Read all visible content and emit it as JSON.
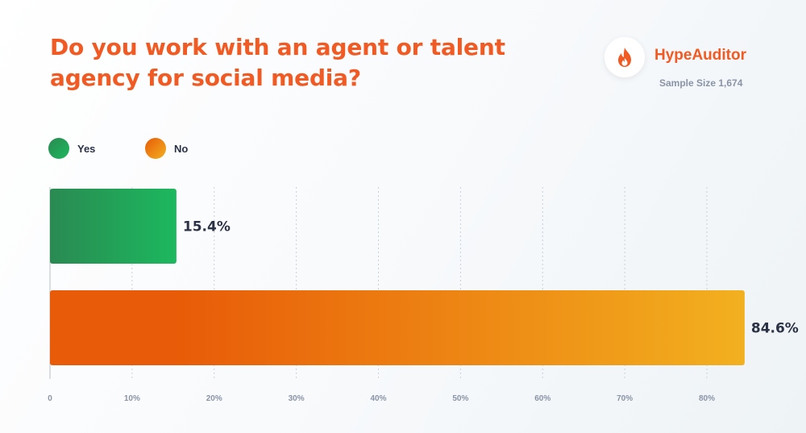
{
  "header": {
    "title": "Do you work with an agent or talent agency for social media?"
  },
  "brand": {
    "name": "HypeAuditor",
    "sample_size": "Sample Size 1,674",
    "icon": "flame-icon"
  },
  "legend": [
    {
      "label": "Yes",
      "color_start": "#2a8a52",
      "color_end": "#1cb85e"
    },
    {
      "label": "No",
      "color_start": "#e85b08",
      "color_end": "#f2b01f"
    }
  ],
  "chart_data": {
    "type": "bar",
    "orientation": "horizontal",
    "categories": [
      "Yes",
      "No"
    ],
    "values": [
      15.4,
      84.6
    ],
    "value_labels": [
      "15.4%",
      "84.6%"
    ],
    "xlim": [
      0,
      80
    ],
    "x_ticks": [
      "0",
      "10%",
      "20%",
      "30%",
      "40%",
      "50%",
      "60%",
      "70%",
      "80%"
    ],
    "grid": true,
    "legend_position": "top-left",
    "title": "Do you work with an agent or talent agency for social media?"
  }
}
